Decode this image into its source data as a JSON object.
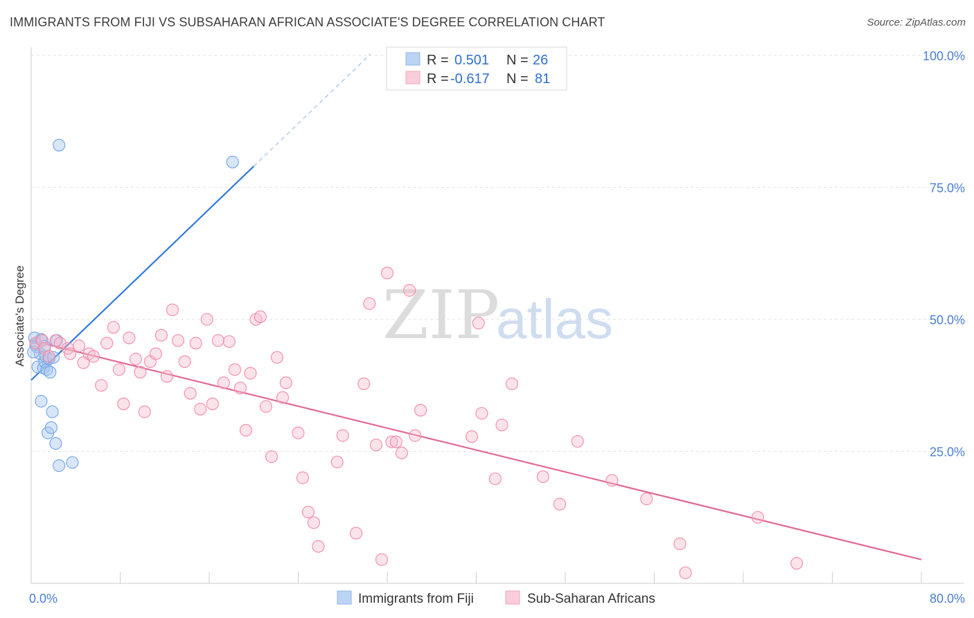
{
  "header": {
    "title": "IMMIGRANTS FROM FIJI VS SUBSAHARAN AFRICAN ASSOCIATE'S DEGREE CORRELATION CHART",
    "source": "Source: ZipAtlas.com"
  },
  "watermark": {
    "zip": "ZIP",
    "atlas": "atlas"
  },
  "legend": {
    "rows": [
      {
        "r_label": "R =",
        "r_value": "0.501",
        "n_label": "N =",
        "n_value": "26",
        "color": "#a9c8f0"
      },
      {
        "r_label": "R =",
        "r_value": "-0.617",
        "n_label": "N =",
        "n_value": "81",
        "color": "#f6b8cb"
      }
    ]
  },
  "bottom_legend": [
    {
      "label": "Immigrants from Fiji",
      "color": "#a9c8f0"
    },
    {
      "label": "Sub-Saharan Africans",
      "color": "#f6b8cb"
    }
  ],
  "chart_data": {
    "type": "scatter",
    "title": "IMMIGRANTS FROM FIJI VS SUBSAHARAN AFRICAN ASSOCIATE'S DEGREE CORRELATION CHART",
    "xlabel": "",
    "ylabel": "Associate's Degree",
    "xlim": [
      0,
      80
    ],
    "ylim": [
      0,
      100
    ],
    "x_tick_labels": [
      "0.0%",
      "80.0%"
    ],
    "y_ticks": [
      25,
      50,
      75,
      100
    ],
    "y_tick_labels": [
      "25.0%",
      "50.0%",
      "75.0%",
      "100.0%"
    ],
    "grid": true,
    "series": [
      {
        "name": "Immigrants from Fiji",
        "color": "#6fa3e6",
        "trend": {
          "x0": 0,
          "y0": 38.5,
          "x1": 20,
          "y1": 79,
          "dashed_to_x": 30.5,
          "line_color": "#2f78d6"
        },
        "points": [
          [
            0.3,
            46.5
          ],
          [
            0.4,
            45.2
          ],
          [
            0.5,
            44.8
          ],
          [
            0.6,
            41.0
          ],
          [
            0.8,
            43.5
          ],
          [
            0.9,
            34.5
          ],
          [
            1.0,
            46.0
          ],
          [
            1.1,
            40.8
          ],
          [
            1.2,
            42.0
          ],
          [
            1.3,
            43.0
          ],
          [
            1.4,
            40.5
          ],
          [
            1.5,
            28.5
          ],
          [
            1.6,
            42.5
          ],
          [
            1.7,
            40.0
          ],
          [
            1.8,
            29.5
          ],
          [
            1.9,
            32.5
          ],
          [
            2.0,
            42.8
          ],
          [
            2.2,
            26.5
          ],
          [
            2.3,
            46.0
          ],
          [
            2.5,
            22.3
          ],
          [
            2.5,
            83.0
          ],
          [
            3.7,
            22.9
          ],
          [
            18.1,
            79.8
          ],
          [
            0.2,
            43.8
          ],
          [
            0.9,
            46.2
          ],
          [
            1.2,
            44.9
          ]
        ]
      },
      {
        "name": "Sub-Saharan Africans",
        "color": "#f28aa8",
        "trend": {
          "x0": 0,
          "y0": 46.0,
          "x1": 80,
          "y1": 4.5,
          "line_color": "#e06a95"
        },
        "points": [
          [
            0.4,
            45.5
          ],
          [
            1.0,
            46.0
          ],
          [
            1.2,
            44.5
          ],
          [
            1.6,
            43.0
          ],
          [
            2.2,
            46.0
          ],
          [
            2.6,
            45.5
          ],
          [
            3.3,
            44.5
          ],
          [
            3.5,
            43.5
          ],
          [
            4.3,
            45.0
          ],
          [
            4.7,
            41.8
          ],
          [
            5.2,
            43.5
          ],
          [
            5.6,
            43.0
          ],
          [
            6.3,
            37.5
          ],
          [
            6.8,
            45.5
          ],
          [
            7.4,
            48.5
          ],
          [
            7.9,
            40.5
          ],
          [
            8.3,
            34.0
          ],
          [
            8.8,
            46.5
          ],
          [
            9.4,
            42.5
          ],
          [
            9.8,
            40.0
          ],
          [
            10.2,
            32.5
          ],
          [
            10.7,
            42.0
          ],
          [
            11.2,
            43.5
          ],
          [
            11.7,
            47.0
          ],
          [
            12.2,
            39.2
          ],
          [
            12.7,
            51.8
          ],
          [
            13.2,
            46.0
          ],
          [
            13.8,
            42.0
          ],
          [
            14.3,
            36.0
          ],
          [
            14.8,
            45.5
          ],
          [
            15.2,
            33.0
          ],
          [
            15.8,
            50.0
          ],
          [
            16.3,
            34.0
          ],
          [
            16.8,
            46.0
          ],
          [
            17.3,
            38.0
          ],
          [
            17.8,
            45.8
          ],
          [
            18.3,
            40.5
          ],
          [
            18.8,
            37.0
          ],
          [
            19.3,
            29.0
          ],
          [
            19.7,
            39.8
          ],
          [
            20.2,
            50.0
          ],
          [
            20.6,
            50.5
          ],
          [
            21.1,
            33.5
          ],
          [
            21.6,
            24.0
          ],
          [
            22.1,
            42.8
          ],
          [
            22.6,
            35.2
          ],
          [
            22.9,
            38.0
          ],
          [
            24.0,
            28.5
          ],
          [
            24.4,
            20.0
          ],
          [
            24.9,
            13.5
          ],
          [
            25.4,
            11.5
          ],
          [
            25.8,
            7.0
          ],
          [
            27.5,
            23.0
          ],
          [
            28.0,
            28.0
          ],
          [
            29.2,
            9.5
          ],
          [
            29.9,
            37.8
          ],
          [
            30.4,
            53.0
          ],
          [
            31.0,
            26.2
          ],
          [
            31.5,
            4.5
          ],
          [
            32.0,
            58.8
          ],
          [
            32.4,
            26.8
          ],
          [
            32.8,
            26.8
          ],
          [
            33.3,
            24.7
          ],
          [
            34.0,
            55.5
          ],
          [
            34.5,
            28.0
          ],
          [
            35.0,
            32.8
          ],
          [
            39.6,
            27.8
          ],
          [
            40.2,
            49.3
          ],
          [
            40.5,
            32.2
          ],
          [
            41.7,
            19.8
          ],
          [
            42.3,
            30.0
          ],
          [
            43.2,
            37.8
          ],
          [
            46.0,
            20.2
          ],
          [
            47.5,
            15.0
          ],
          [
            49.1,
            26.9
          ],
          [
            52.2,
            19.5
          ],
          [
            55.3,
            16.0
          ],
          [
            58.3,
            7.5
          ],
          [
            58.8,
            2.0
          ],
          [
            65.3,
            12.5
          ],
          [
            68.8,
            3.8
          ]
        ]
      }
    ]
  }
}
